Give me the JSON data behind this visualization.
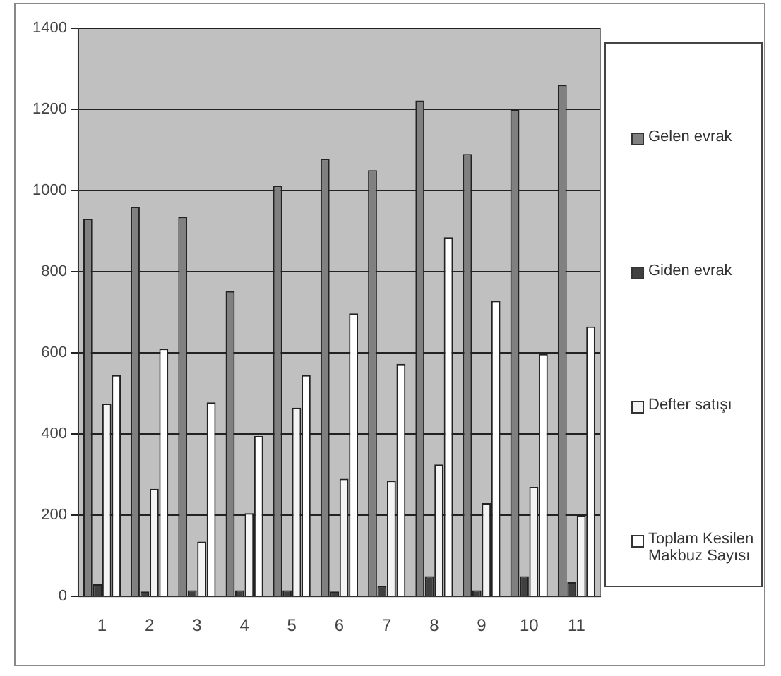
{
  "chart_data": {
    "type": "bar",
    "categories": [
      "1",
      "2",
      "3",
      "4",
      "5",
      "6",
      "7",
      "8",
      "9",
      "10",
      "11"
    ],
    "series": [
      {
        "name": "Gelen evrak",
        "color": "#808080",
        "values": [
          930,
          960,
          935,
          752,
          1012,
          1078,
          1050,
          1222,
          1090,
          1200,
          1260
        ]
      },
      {
        "name": "Giden evrak",
        "color": "#404040",
        "values": [
          30,
          12,
          15,
          15,
          15,
          12,
          25,
          50,
          15,
          50,
          35
        ]
      },
      {
        "name": "Defter satışı",
        "color": "#f4f4f4",
        "values": [
          475,
          265,
          135,
          205,
          465,
          290,
          285,
          325,
          230,
          270,
          200
        ]
      },
      {
        "name": "Toplam Kesilen Makbuz Sayısı",
        "color": "#ffffff",
        "values": [
          545,
          610,
          478,
          395,
          545,
          697,
          573,
          885,
          728,
          597,
          665
        ]
      }
    ],
    "ylim": [
      0,
      1400
    ],
    "yticks": [
      0,
      200,
      400,
      600,
      800,
      1000,
      1200,
      1400
    ],
    "grid": "y",
    "legend": "right"
  }
}
